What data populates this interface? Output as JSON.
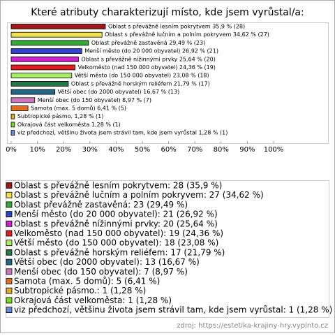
{
  "chart_data": {
    "type": "bar",
    "orientation": "horizontal",
    "title": "Které atributy charakterizují místo, kde jsem vyrůstal/a:",
    "categories": [
      "Oblast s převážně lesním pokrytvem",
      "Oblast s převážně lučním a polním pokryvem",
      "Oblast převážně zastavěná",
      "Menší město (do 20 000 obyvatel)",
      "Oblast s převážně nížinnými prvky",
      "Velkoměsto (nad 150 000 obyvatel)",
      "Větší město (do 150 000 obyvatel)",
      "Oblast s převážně horským reliéfem",
      "Větší obec (do 2000 obyvatel)",
      "Menší obec (do 150 obyvatel)",
      "Samota (max. 5 domů)",
      "Subtropické pásmo.",
      "Okrajová část velkoměsta",
      "viz předchozí, většinu života jsem strávil tam, kde jsem vyrůstal"
    ],
    "values": [
      35.9,
      34.62,
      29.49,
      26.92,
      25.64,
      24.36,
      23.08,
      21.79,
      16.67,
      8.97,
      6.41,
      1.28,
      1.28,
      1.28
    ],
    "value_labels": [
      "Oblast s převážně lesním pokrytvem 35,9 % (28)",
      "Oblast s převážně lučním a polním pokryvem 34,62 % (27)",
      "Oblast převážně zastavěná 29,49 % (23)",
      "Menší město (do 20 000 obyvatel) 26,92 % (21)",
      "Oblast s převážně nížinnými prvky 25,64 % (20)",
      "Velkoměsto (nad 150 000 obyvatel) 24,36 % (19)",
      "Větší město (do 150 000 obyvatel) 23,08 % (18)",
      "Oblast s převážně horským reliéfem 21,79 % (17)",
      "Větší obec (do 2000 obyvatel) 16,67 % (13)",
      "Menší obec (do 150 obyvatel) 8,97 % (7)",
      "Samota (max. 5 domů) 6,41 % (5)",
      "Subtropické pásmo. 1,28 % (1)",
      "Okrajová část velkoměsta 1,28 % (1)",
      "viz předchozí, většinu života jsem strávil tam, kde jsem vyrůstal 1,28 % (1)"
    ],
    "legend_labels": [
      "Oblast s převážně lesním pokrytvem: 28 (35,9 %)",
      "Oblast s převážně lučním a polním pokryvem: 27 (34,62 %)",
      "Oblast převážně zastavěná: 23 (29,49 %)",
      "Menší město (do 20 000 obyvatel): 21 (26,92 %)",
      "Oblast s převážně nížinnými prvky: 20 (25,64 %)",
      "Velkoměsto (nad 150 000 obyvatel): 19 (24,36 %)",
      "Větší město (do 150 000 obyvatel): 18 (23,08 %)",
      "Oblast s převážně horským reliéfem: 17 (21,79 %)",
      "Větší obec (do 2000 obyvatel): 13 (16,67 %)",
      "Menší obec (do 150 obyvatel): 7 (8,97 %)",
      "Samota (max. 5 domů): 5 (6,41 %)",
      "Subtropické pásmo.: 1 (1,28 %)",
      "Okrajová část velkoměsta: 1 (1,28 %)",
      "viz předchozí, většinu života jsem strávil tam, kde jsem vyrůstal: 1 (1,28 %)"
    ],
    "colors": [
      "#a01818",
      "#f2e04a",
      "#33aa33",
      "#3344cc",
      "#cc22cc",
      "#e02020",
      "#aaee66",
      "#227744",
      "#226688",
      "#cc77bb",
      "#e07020",
      "#ddaa22",
      "#77dd22",
      "#6688dd"
    ],
    "xlim": [
      0,
      100
    ],
    "xticks": [
      {
        "value": 0,
        "label": "0%"
      },
      {
        "value": 10,
        "label": "10%"
      },
      {
        "value": 20,
        "label": "20%"
      },
      {
        "value": 30,
        "label": "30%"
      },
      {
        "value": 40,
        "label": "40%"
      },
      {
        "value": 50,
        "label": "50%"
      },
      {
        "value": 60,
        "label": "60%"
      },
      {
        "value": 70,
        "label": "70%"
      },
      {
        "value": 80,
        "label": "80%"
      },
      {
        "value": 90,
        "label": "90%"
      },
      {
        "value": 100,
        "label": "100%"
      }
    ],
    "source": "zdroj: https://estetika-krajiny-hry.vyplnto.cz"
  }
}
